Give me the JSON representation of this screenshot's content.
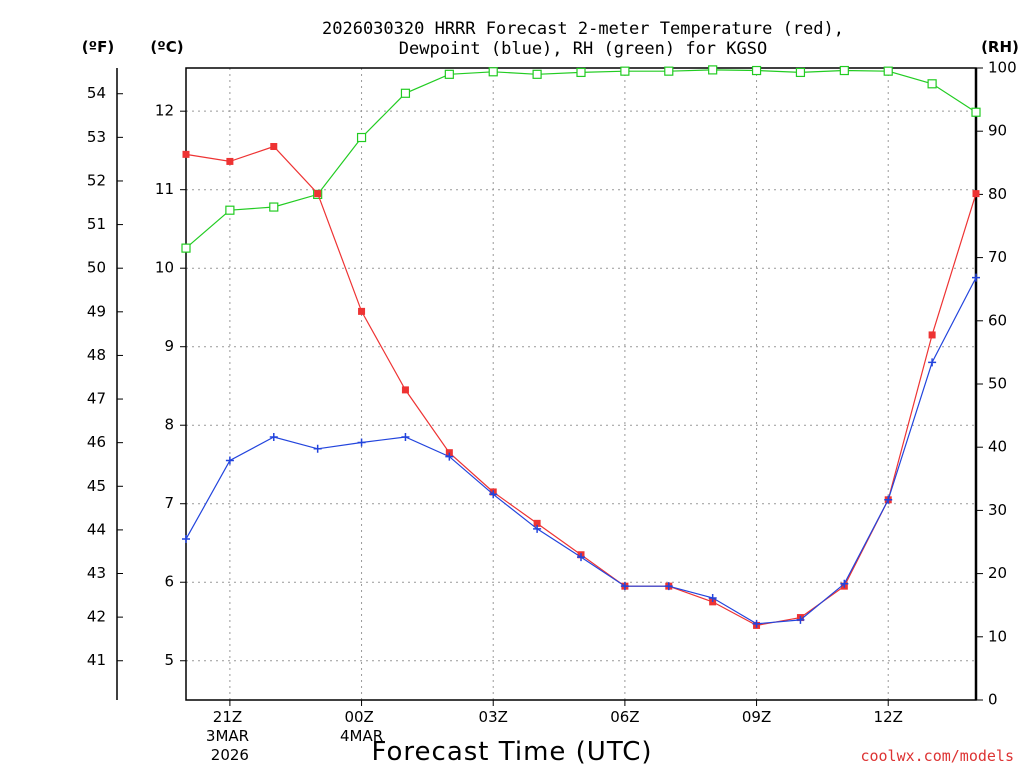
{
  "chart_data": {
    "type": "line",
    "title_line1": "2026030320 HRRR Forecast 2-meter Temperature (red),",
    "title_line2": "Dewpoint (blue), RH (green) for KGSO",
    "xlabel": "Forecast Time (UTC)",
    "credit": "coolwx.com/models",
    "units": {
      "fahrenheit": "(ºF)",
      "celsius": "(ºC)",
      "rh": "(RH)"
    },
    "x_hours": [
      20,
      21,
      22,
      23,
      24,
      25,
      26,
      27,
      28,
      29,
      30,
      31,
      32,
      33,
      34,
      35,
      36,
      37,
      38
    ],
    "x_ticks": [
      {
        "hour": 21,
        "lines": [
          "21Z",
          "3MAR",
          "2026"
        ]
      },
      {
        "hour": 24,
        "lines": [
          "00Z",
          "4MAR"
        ]
      },
      {
        "hour": 27,
        "lines": [
          "03Z"
        ]
      },
      {
        "hour": 30,
        "lines": [
          "06Z"
        ]
      },
      {
        "hour": 33,
        "lines": [
          "09Z"
        ]
      },
      {
        "hour": 36,
        "lines": [
          "12Z"
        ]
      }
    ],
    "xlim": [
      20,
      38
    ],
    "celsius_axis": {
      "range": [
        4.5,
        12.55
      ],
      "ticks": [
        "5",
        "6",
        "7",
        "8",
        "9",
        "10",
        "11",
        "12"
      ]
    },
    "fahrenheit_axis": {
      "ticks": [
        "41",
        "42",
        "43",
        "44",
        "45",
        "46",
        "47",
        "48",
        "49",
        "50",
        "51",
        "52",
        "53",
        "54"
      ]
    },
    "rh_axis": {
      "range": [
        0,
        100
      ],
      "ticks": [
        "0",
        "10",
        "20",
        "30",
        "40",
        "50",
        "60",
        "70",
        "80",
        "90",
        "100"
      ]
    },
    "series": [
      {
        "name": "Temperature",
        "axis": "celsius",
        "color": "#ee3333",
        "marker": "filled-square",
        "values": [
          11.45,
          11.36,
          11.55,
          10.95,
          9.45,
          8.45,
          7.65,
          7.15,
          6.75,
          6.35,
          5.95,
          5.95,
          5.75,
          5.45,
          5.55,
          5.95,
          7.05,
          9.15,
          10.95
        ]
      },
      {
        "name": "Dewpoint",
        "axis": "celsius",
        "color": "#2244dd",
        "marker": "plus",
        "values": [
          6.55,
          7.55,
          7.85,
          7.7,
          7.78,
          7.85,
          7.6,
          7.12,
          6.68,
          6.32,
          5.95,
          5.95,
          5.8,
          5.47,
          5.52,
          5.98,
          7.05,
          8.8,
          9.88
        ]
      },
      {
        "name": "RH",
        "axis": "rh",
        "color": "#22cc22",
        "marker": "open-square",
        "values": [
          71.5,
          77.5,
          78.0,
          80.0,
          89.0,
          96.0,
          99.0,
          99.4,
          99.0,
          99.3,
          99.5,
          99.5,
          99.7,
          99.6,
          99.3,
          99.6,
          99.5,
          97.5,
          93.0
        ]
      }
    ]
  }
}
